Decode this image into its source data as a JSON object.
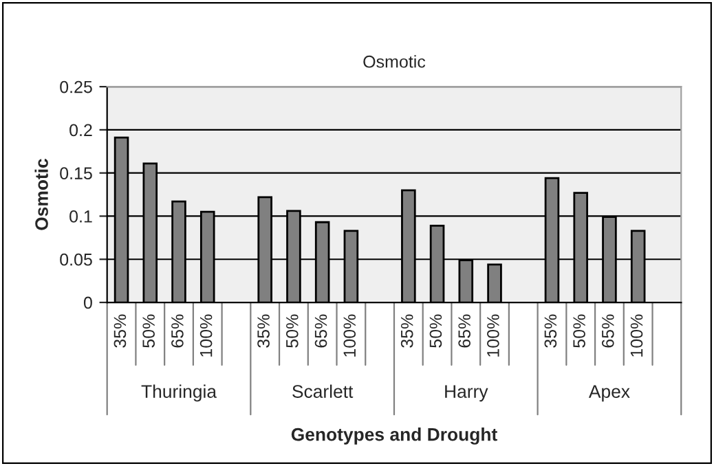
{
  "chart_data": {
    "type": "bar",
    "title": "Osmotic",
    "xlabel": "Genotypes and Drought",
    "ylabel": "Osmotic",
    "categories": [
      "35%",
      "50%",
      "65%",
      "100%",
      null,
      "35%",
      "50%",
      "65%",
      "100%",
      null,
      "35%",
      "50%",
      "65%",
      "100%",
      null,
      "35%",
      "50%",
      "65%",
      "100%",
      null
    ],
    "values": [
      0.191,
      0.161,
      0.117,
      0.105,
      null,
      0.122,
      0.106,
      0.093,
      0.083,
      null,
      0.13,
      0.089,
      0.049,
      0.044,
      null,
      0.144,
      0.127,
      0.099,
      0.083,
      null
    ],
    "color": "#808080",
    "annotations": [
      "Thuringia",
      "Scarlett",
      "Harry",
      "Apex"
    ],
    "ylim": [
      0,
      0.25
    ],
    "yticks": [
      0,
      0.05,
      0.1,
      0.15,
      0.2,
      0.25
    ],
    "grid": "y",
    "legend": false
  }
}
